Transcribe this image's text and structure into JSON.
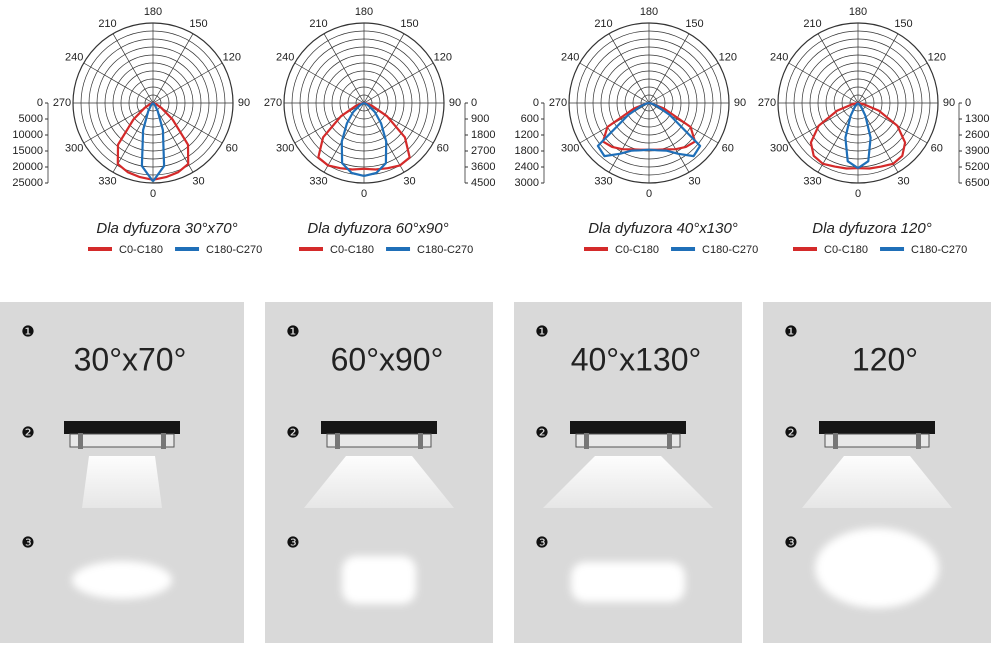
{
  "panels": [
    {
      "title": "Dla dyfuzora 30°x70°",
      "beam_label": "30°x70°",
      "chart": {
        "type": "polar",
        "angle_labels": [
          180,
          150,
          120,
          90,
          60,
          30,
          0,
          330,
          300,
          270,
          240,
          210
        ],
        "rlim": [
          0,
          25000
        ],
        "rticks": [
          0,
          5000,
          10000,
          15000,
          20000,
          25000
        ],
        "rticks_side": "left",
        "angles": [
          0,
          10,
          20,
          30,
          40,
          50,
          60,
          70,
          80,
          90
        ],
        "series": [
          {
            "name": "C0-C180",
            "color": "#d42a2a",
            "values": [
              24000,
              23500,
              23000,
              22000,
              17000,
              8000,
              3000,
              1000,
              300,
              0
            ]
          },
          {
            "name": "C180-C270",
            "color": "#1f6fb8",
            "values": [
              24500,
              20000,
              9000,
              3000,
              1000,
              300,
              100,
              0,
              0,
              0
            ]
          }
        ]
      }
    },
    {
      "title": "Dla dyfuzora 60°x90°",
      "beam_label": "60°x90°",
      "chart": {
        "type": "polar",
        "angle_labels": [
          180,
          150,
          120,
          90,
          60,
          30,
          0,
          330,
          300,
          270,
          240,
          210
        ],
        "rlim": [
          0,
          4500
        ],
        "rticks": [
          0,
          900,
          1800,
          2700,
          3600,
          4500
        ],
        "rticks_side": "right",
        "angles": [
          0,
          10,
          20,
          30,
          40,
          50,
          60,
          70,
          80,
          90
        ],
        "series": [
          {
            "name": "C0-C180",
            "color": "#d42a2a",
            "values": [
              3700,
              3800,
              3900,
              4050,
              4000,
              3000,
              1500,
              500,
              150,
              0
            ]
          },
          {
            "name": "C180-C270",
            "color": "#1f6fb8",
            "values": [
              4100,
              4000,
              3600,
              2500,
              1500,
              800,
              300,
              100,
              0,
              0
            ]
          }
        ]
      }
    },
    {
      "title": "Dla dyfuzora 40°x130°",
      "beam_label": "40°x130°",
      "chart": {
        "type": "polar",
        "angle_labels": [
          180,
          150,
          120,
          90,
          60,
          30,
          0,
          330,
          300,
          270,
          240,
          210
        ],
        "rlim": [
          0,
          3000
        ],
        "rticks": [
          0,
          600,
          1200,
          1800,
          2400,
          3000
        ],
        "rticks_side": "left",
        "angles": [
          0,
          10,
          20,
          30,
          40,
          50,
          60,
          70,
          80,
          90
        ],
        "series": [
          {
            "name": "C0-C180",
            "color": "#d42a2a",
            "values": [
              1750,
              1780,
              1850,
              2000,
              2150,
              2250,
              1800,
              600,
              100,
              0
            ]
          },
          {
            "name": "C180-C270",
            "color": "#1f6fb8",
            "values": [
              1750,
              1800,
              1900,
              2200,
              2600,
              2500,
              900,
              300,
              100,
              0
            ]
          }
        ]
      }
    },
    {
      "title": "Dla dyfuzora 120°",
      "beam_label": "120°",
      "chart": {
        "type": "polar",
        "angle_labels": [
          180,
          150,
          120,
          90,
          60,
          30,
          0,
          330,
          300,
          270,
          240,
          210
        ],
        "rlim": [
          0,
          6500
        ],
        "rticks": [
          0,
          1300,
          2600,
          3900,
          5200,
          6500
        ],
        "rticks_side": "right",
        "angles": [
          0,
          10,
          20,
          30,
          40,
          50,
          60,
          70,
          80,
          90
        ],
        "series": [
          {
            "name": "C0-C180",
            "color": "#d42a2a",
            "values": [
              5300,
              5400,
              5500,
              5700,
              5600,
              5000,
              3700,
              1800,
              400,
              0
            ]
          },
          {
            "name": "C180-C270",
            "color": "#1f6fb8",
            "values": [
              5300,
              4800,
              3000,
              1200,
              400,
              100,
              0,
              0,
              0,
              0
            ]
          }
        ]
      }
    }
  ],
  "markers": [
    "❶",
    "❷",
    "❸"
  ]
}
